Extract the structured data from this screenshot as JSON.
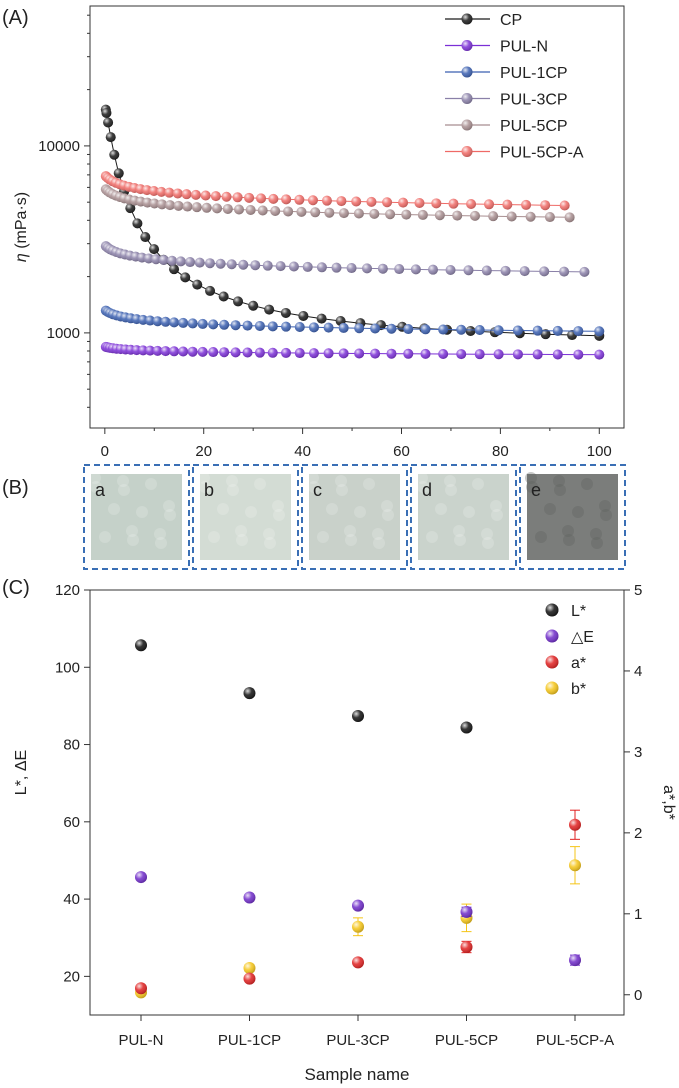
{
  "panel_labels": {
    "a": "(A)",
    "b": "(B)",
    "c": "(C)"
  },
  "photo_labels": [
    "a",
    "b",
    "c",
    "d",
    "e"
  ],
  "photo_colors": [
    "#c5d1c9",
    "#d3dcd4",
    "#c9d1ca",
    "#cad3cc",
    "#7b7d7b"
  ],
  "chart_data": [
    {
      "type": "line",
      "panel": "A",
      "xlabel": "",
      "ylabel_symbol": "η",
      "ylabel_unit": "(mPa·s)",
      "y_scale": "log",
      "xlim": [
        -3,
        105
      ],
      "ylim": [
        310,
        56000
      ],
      "xticks": [
        0,
        20,
        40,
        60,
        80,
        100
      ],
      "yticks": [
        1000,
        10000
      ],
      "legend_position": "top-right",
      "series": [
        {
          "name": "CP",
          "color": "#1a1a1a",
          "x_end": 100,
          "y_start": 16500,
          "y_end": 830,
          "kind": "cp"
        },
        {
          "name": "PUL-N",
          "color": "#7b2fd6",
          "x_end": 100,
          "y_start": 845,
          "y_end": 765,
          "kind": "flat"
        },
        {
          "name": "PUL-1CP",
          "color": "#3a5fb0",
          "x_end": 100,
          "y_start": 1330,
          "y_end": 1020,
          "kind": "flat"
        },
        {
          "name": "PUL-3CP",
          "color": "#8a80a8",
          "x_end": 97,
          "y_start": 2950,
          "y_end": 2120,
          "kind": "flat"
        },
        {
          "name": "PUL-5CP",
          "color": "#a88e90",
          "x_end": 94,
          "y_start": 5950,
          "y_end": 4150,
          "kind": "flat"
        },
        {
          "name": "PUL-5CP-A",
          "color": "#ef6a66",
          "x_end": 93,
          "y_start": 7000,
          "y_end": 4800,
          "kind": "flat"
        }
      ]
    },
    {
      "type": "scatter",
      "panel": "C",
      "xlabel": "Sample name",
      "ylabel_left": "L*, ΔE",
      "ylabel_right": "a*,b*",
      "categories": [
        "PUL-N",
        "PUL-1CP",
        "PUL-3CP",
        "PUL-5CP",
        "PUL-5CP-A"
      ],
      "ylim_left": [
        10,
        120
      ],
      "ylim_right": [
        -0.25,
        5
      ],
      "yticks_left": [
        20,
        40,
        60,
        80,
        100,
        120
      ],
      "yticks_right": [
        0,
        1,
        2,
        3,
        4,
        5
      ],
      "legend_position": "top-right",
      "series": [
        {
          "name": "L*",
          "axis": "left",
          "color": "#111111",
          "values": [
            105.7,
            93.3,
            87.4,
            84.4,
            null
          ],
          "errors": [
            0,
            0,
            0,
            0,
            0
          ]
        },
        {
          "name": "△E",
          "axis": "left",
          "color": "#6f2bc9",
          "values": [
            45.7,
            40.4,
            38.3,
            36.7,
            24.2
          ],
          "errors": [
            0,
            0,
            0,
            1.2,
            1.3
          ]
        },
        {
          "name": "a*",
          "axis": "right",
          "color": "#e02020",
          "values": [
            0.08,
            0.2,
            0.4,
            0.59,
            2.1
          ],
          "errors": [
            0.03,
            0.03,
            0.03,
            0.07,
            0.18
          ]
        },
        {
          "name": "b*",
          "axis": "right",
          "color": "#f5c518",
          "values": [
            0.03,
            0.33,
            0.84,
            0.95,
            1.6
          ],
          "errors": [
            0.03,
            0.04,
            0.11,
            0.17,
            0.23
          ]
        }
      ]
    }
  ]
}
